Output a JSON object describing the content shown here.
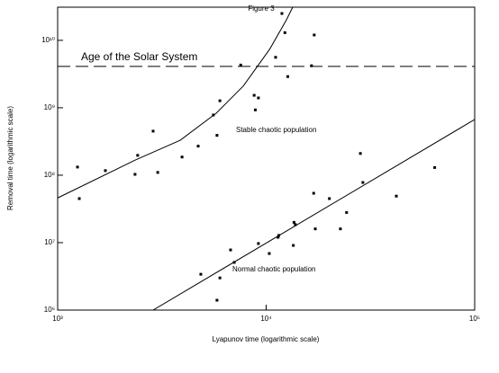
{
  "chart_data": {
    "type": "scatter",
    "title": "Figure 3",
    "x_label": "Lyapunov time (logarithmic scale)",
    "y_label": "Removal time (logarithmic scale)",
    "log_x": true,
    "log_y": true,
    "xlim": [
      1000,
      100000
    ],
    "ylim": [
      1000000,
      31000000000
    ],
    "xticks": [
      {
        "value": 1000,
        "label": "10³"
      },
      {
        "value": 10000,
        "label": "10⁴"
      },
      {
        "value": 100000,
        "label": "10⁵"
      }
    ],
    "yticks": [
      {
        "value": 1000000,
        "label": "10⁶"
      },
      {
        "value": 10000000,
        "label": "10⁷"
      },
      {
        "value": 100000000,
        "label": "10⁸"
      },
      {
        "value": 1000000000,
        "label": "10⁹"
      },
      {
        "value": 10000000000,
        "label": "10¹⁰"
      }
    ],
    "series": [
      {
        "type": "scatter",
        "color": "#000000",
        "x": [
          1245,
          1270,
          1694,
          2350,
          2420,
          2870,
          3020,
          3950,
          4720,
          5580,
          5810,
          6000,
          7550,
          8760,
          9180,
          8870,
          11100,
          11900,
          12300,
          12700,
          17000,
          16500,
          4860,
          6000,
          5810,
          6750,
          7030,
          9180,
          10350,
          11400,
          11500,
          13500,
          13600,
          13800,
          16900,
          17200,
          20100,
          22700,
          24300,
          28300,
          29100,
          42100,
          64300
        ],
        "values": [
          132000000,
          45000000,
          117000000,
          103000000,
          197000000,
          450000000,
          110000000,
          186000000,
          270000000,
          780000000,
          390000000,
          1270000000,
          4300000000,
          1530000000,
          1400000000,
          930000000,
          5600000000,
          25000000000,
          13000000000,
          2900000000,
          12000000000,
          4200000000,
          3400000,
          3000000,
          1400000,
          7800000,
          5100000,
          9700000,
          6900000,
          12000000,
          12800000,
          9100000,
          20000000,
          18500000,
          54000000,
          16000000,
          45000000,
          16000000,
          28000000,
          210000000,
          78000000,
          49000000,
          130000000
        ]
      },
      {
        "type": "line",
        "color": "#000000",
        "x": [
          1000,
          2350,
          3870,
          5760,
          7770,
          10400,
          12500,
          13400
        ],
        "values": [
          46000000,
          167000000,
          330000000,
          830000000,
          2100000000,
          7400000000,
          20000000000,
          31000000000
        ]
      },
      {
        "type": "line",
        "color": "#000000",
        "x": [
          2870,
          100000
        ],
        "values": [
          1000000,
          670000000
        ]
      }
    ],
    "hline": {
      "value": 4100000000,
      "label": "Age of the Solar System",
      "dashed": true
    },
    "annotations": [
      "Stable chaotic population",
      "Normal chaotic population"
    ]
  }
}
